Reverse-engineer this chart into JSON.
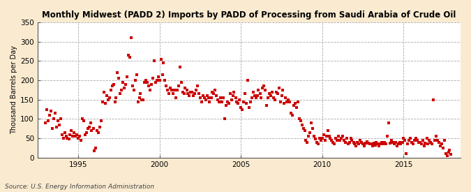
{
  "title": "Monthly Midwest (PADD 2) Imports by PADD of Processing from Saudi Arabia of Crude Oil",
  "ylabel": "Thousand Barrels per Day",
  "source": "Source: U.S. Energy Information Administration",
  "background_color": "#faebd0",
  "plot_bg_color": "#ffffff",
  "marker_color": "#cc0000",
  "marker_size": 7,
  "ylim": [
    0,
    350
  ],
  "yticks": [
    0,
    50,
    100,
    150,
    200,
    250,
    300,
    350
  ],
  "x_start_year": 1992.5,
  "x_end_year": 2018.5,
  "xticks": [
    1995,
    2000,
    2005,
    2010,
    2015
  ],
  "data": [
    [
      1993.0,
      90
    ],
    [
      1993.08,
      125
    ],
    [
      1993.17,
      95
    ],
    [
      1993.25,
      110
    ],
    [
      1993.33,
      120
    ],
    [
      1993.42,
      75
    ],
    [
      1993.5,
      100
    ],
    [
      1993.58,
      115
    ],
    [
      1993.67,
      80
    ],
    [
      1993.75,
      95
    ],
    [
      1993.83,
      85
    ],
    [
      1993.92,
      100
    ],
    [
      1994.0,
      60
    ],
    [
      1994.08,
      50
    ],
    [
      1994.17,
      65
    ],
    [
      1994.25,
      55
    ],
    [
      1994.33,
      50
    ],
    [
      1994.42,
      48
    ],
    [
      1994.5,
      60
    ],
    [
      1994.58,
      70
    ],
    [
      1994.67,
      55
    ],
    [
      1994.75,
      65
    ],
    [
      1994.83,
      55
    ],
    [
      1994.92,
      60
    ],
    [
      1995.0,
      50
    ],
    [
      1995.08,
      55
    ],
    [
      1995.17,
      45
    ],
    [
      1995.25,
      100
    ],
    [
      1995.33,
      95
    ],
    [
      1995.42,
      60
    ],
    [
      1995.5,
      65
    ],
    [
      1995.58,
      75
    ],
    [
      1995.67,
      80
    ],
    [
      1995.75,
      90
    ],
    [
      1995.83,
      70
    ],
    [
      1995.92,
      75
    ],
    [
      1996.0,
      18
    ],
    [
      1996.08,
      25
    ],
    [
      1996.17,
      70
    ],
    [
      1996.25,
      65
    ],
    [
      1996.33,
      80
    ],
    [
      1996.42,
      95
    ],
    [
      1996.5,
      145
    ],
    [
      1996.58,
      170
    ],
    [
      1996.67,
      140
    ],
    [
      1996.75,
      160
    ],
    [
      1996.83,
      150
    ],
    [
      1996.92,
      155
    ],
    [
      1997.0,
      175
    ],
    [
      1997.08,
      185
    ],
    [
      1997.17,
      190
    ],
    [
      1997.25,
      145
    ],
    [
      1997.33,
      155
    ],
    [
      1997.42,
      220
    ],
    [
      1997.5,
      205
    ],
    [
      1997.58,
      165
    ],
    [
      1997.67,
      175
    ],
    [
      1997.75,
      195
    ],
    [
      1997.83,
      180
    ],
    [
      1997.92,
      190
    ],
    [
      1998.0,
      210
    ],
    [
      1998.08,
      265
    ],
    [
      1998.17,
      260
    ],
    [
      1998.25,
      310
    ],
    [
      1998.33,
      185
    ],
    [
      1998.42,
      175
    ],
    [
      1998.5,
      200
    ],
    [
      1998.58,
      215
    ],
    [
      1998.67,
      145
    ],
    [
      1998.75,
      155
    ],
    [
      1998.83,
      165
    ],
    [
      1998.92,
      150
    ],
    [
      1999.0,
      150
    ],
    [
      1999.08,
      195
    ],
    [
      1999.17,
      200
    ],
    [
      1999.25,
      195
    ],
    [
      1999.33,
      185
    ],
    [
      1999.42,
      175
    ],
    [
      1999.5,
      190
    ],
    [
      1999.58,
      205
    ],
    [
      1999.67,
      250
    ],
    [
      1999.75,
      195
    ],
    [
      1999.83,
      200
    ],
    [
      1999.92,
      210
    ],
    [
      2000.0,
      200
    ],
    [
      2000.08,
      255
    ],
    [
      2000.17,
      215
    ],
    [
      2000.25,
      245
    ],
    [
      2000.33,
      200
    ],
    [
      2000.42,
      185
    ],
    [
      2000.5,
      175
    ],
    [
      2000.58,
      165
    ],
    [
      2000.67,
      180
    ],
    [
      2000.75,
      175
    ],
    [
      2000.83,
      165
    ],
    [
      2000.92,
      175
    ],
    [
      2001.0,
      155
    ],
    [
      2001.08,
      175
    ],
    [
      2001.17,
      185
    ],
    [
      2001.25,
      235
    ],
    [
      2001.33,
      195
    ],
    [
      2001.42,
      170
    ],
    [
      2001.5,
      165
    ],
    [
      2001.58,
      180
    ],
    [
      2001.67,
      175
    ],
    [
      2001.75,
      165
    ],
    [
      2001.83,
      160
    ],
    [
      2001.92,
      170
    ],
    [
      2002.0,
      170
    ],
    [
      2002.08,
      160
    ],
    [
      2002.17,
      165
    ],
    [
      2002.25,
      175
    ],
    [
      2002.33,
      185
    ],
    [
      2002.42,
      165
    ],
    [
      2002.5,
      155
    ],
    [
      2002.58,
      145
    ],
    [
      2002.67,
      160
    ],
    [
      2002.75,
      155
    ],
    [
      2002.83,
      150
    ],
    [
      2002.92,
      160
    ],
    [
      2003.0,
      155
    ],
    [
      2003.08,
      145
    ],
    [
      2003.17,
      155
    ],
    [
      2003.25,
      170
    ],
    [
      2003.33,
      165
    ],
    [
      2003.42,
      175
    ],
    [
      2003.5,
      160
    ],
    [
      2003.58,
      150
    ],
    [
      2003.67,
      145
    ],
    [
      2003.75,
      155
    ],
    [
      2003.83,
      145
    ],
    [
      2003.92,
      155
    ],
    [
      2004.0,
      100
    ],
    [
      2004.08,
      135
    ],
    [
      2004.17,
      145
    ],
    [
      2004.25,
      140
    ],
    [
      2004.33,
      165
    ],
    [
      2004.42,
      150
    ],
    [
      2004.5,
      160
    ],
    [
      2004.58,
      170
    ],
    [
      2004.67,
      155
    ],
    [
      2004.75,
      145
    ],
    [
      2004.83,
      140
    ],
    [
      2004.92,
      150
    ],
    [
      2005.0,
      130
    ],
    [
      2005.08,
      125
    ],
    [
      2005.17,
      145
    ],
    [
      2005.25,
      165
    ],
    [
      2005.33,
      140
    ],
    [
      2005.42,
      200
    ],
    [
      2005.5,
      130
    ],
    [
      2005.58,
      145
    ],
    [
      2005.67,
      155
    ],
    [
      2005.75,
      170
    ],
    [
      2005.83,
      160
    ],
    [
      2005.92,
      155
    ],
    [
      2006.0,
      160
    ],
    [
      2006.08,
      175
    ],
    [
      2006.17,
      165
    ],
    [
      2006.25,
      155
    ],
    [
      2006.33,
      180
    ],
    [
      2006.42,
      185
    ],
    [
      2006.5,
      175
    ],
    [
      2006.58,
      135
    ],
    [
      2006.67,
      155
    ],
    [
      2006.75,
      165
    ],
    [
      2006.83,
      160
    ],
    [
      2006.92,
      170
    ],
    [
      2007.0,
      155
    ],
    [
      2007.08,
      150
    ],
    [
      2007.17,
      170
    ],
    [
      2007.25,
      165
    ],
    [
      2007.33,
      180
    ],
    [
      2007.42,
      145
    ],
    [
      2007.5,
      160
    ],
    [
      2007.58,
      175
    ],
    [
      2007.67,
      140
    ],
    [
      2007.75,
      155
    ],
    [
      2007.83,
      145
    ],
    [
      2007.92,
      150
    ],
    [
      2008.0,
      145
    ],
    [
      2008.08,
      115
    ],
    [
      2008.17,
      110
    ],
    [
      2008.25,
      135
    ],
    [
      2008.33,
      140
    ],
    [
      2008.42,
      130
    ],
    [
      2008.5,
      145
    ],
    [
      2008.58,
      100
    ],
    [
      2008.67,
      95
    ],
    [
      2008.75,
      85
    ],
    [
      2008.83,
      75
    ],
    [
      2008.92,
      70
    ],
    [
      2009.0,
      45
    ],
    [
      2009.08,
      40
    ],
    [
      2009.17,
      55
    ],
    [
      2009.25,
      65
    ],
    [
      2009.33,
      90
    ],
    [
      2009.42,
      75
    ],
    [
      2009.5,
      55
    ],
    [
      2009.58,
      48
    ],
    [
      2009.67,
      40
    ],
    [
      2009.75,
      35
    ],
    [
      2009.83,
      50
    ],
    [
      2009.92,
      45
    ],
    [
      2010.0,
      50
    ],
    [
      2010.08,
      60
    ],
    [
      2010.17,
      45
    ],
    [
      2010.25,
      55
    ],
    [
      2010.33,
      70
    ],
    [
      2010.42,
      55
    ],
    [
      2010.5,
      50
    ],
    [
      2010.58,
      45
    ],
    [
      2010.67,
      40
    ],
    [
      2010.75,
      35
    ],
    [
      2010.83,
      50
    ],
    [
      2010.92,
      45
    ],
    [
      2011.0,
      55
    ],
    [
      2011.08,
      45
    ],
    [
      2011.17,
      50
    ],
    [
      2011.25,
      55
    ],
    [
      2011.33,
      45
    ],
    [
      2011.42,
      40
    ],
    [
      2011.5,
      50
    ],
    [
      2011.58,
      35
    ],
    [
      2011.67,
      40
    ],
    [
      2011.75,
      50
    ],
    [
      2011.83,
      45
    ],
    [
      2011.92,
      40
    ],
    [
      2012.0,
      35
    ],
    [
      2012.08,
      30
    ],
    [
      2012.17,
      40
    ],
    [
      2012.25,
      35
    ],
    [
      2012.33,
      45
    ],
    [
      2012.42,
      40
    ],
    [
      2012.5,
      35
    ],
    [
      2012.58,
      30
    ],
    [
      2012.67,
      38
    ],
    [
      2012.75,
      42
    ],
    [
      2012.83,
      38
    ],
    [
      2012.92,
      35
    ],
    [
      2013.0,
      35
    ],
    [
      2013.08,
      30
    ],
    [
      2013.17,
      38
    ],
    [
      2013.25,
      32
    ],
    [
      2013.33,
      40
    ],
    [
      2013.42,
      35
    ],
    [
      2013.5,
      30
    ],
    [
      2013.58,
      35
    ],
    [
      2013.67,
      40
    ],
    [
      2013.75,
      35
    ],
    [
      2013.83,
      40
    ],
    [
      2013.92,
      35
    ],
    [
      2014.0,
      55
    ],
    [
      2014.08,
      90
    ],
    [
      2014.17,
      38
    ],
    [
      2014.25,
      45
    ],
    [
      2014.33,
      40
    ],
    [
      2014.42,
      35
    ],
    [
      2014.5,
      40
    ],
    [
      2014.58,
      30
    ],
    [
      2014.67,
      35
    ],
    [
      2014.75,
      40
    ],
    [
      2014.83,
      35
    ],
    [
      2014.92,
      40
    ],
    [
      2015.0,
      50
    ],
    [
      2015.08,
      45
    ],
    [
      2015.17,
      10
    ],
    [
      2015.25,
      35
    ],
    [
      2015.33,
      45
    ],
    [
      2015.42,
      50
    ],
    [
      2015.5,
      40
    ],
    [
      2015.58,
      35
    ],
    [
      2015.67,
      45
    ],
    [
      2015.75,
      50
    ],
    [
      2015.83,
      45
    ],
    [
      2015.92,
      40
    ],
    [
      2016.0,
      40
    ],
    [
      2016.08,
      35
    ],
    [
      2016.17,
      45
    ],
    [
      2016.25,
      30
    ],
    [
      2016.33,
      38
    ],
    [
      2016.42,
      50
    ],
    [
      2016.5,
      35
    ],
    [
      2016.58,
      45
    ],
    [
      2016.67,
      40
    ],
    [
      2016.75,
      35
    ],
    [
      2016.83,
      150
    ],
    [
      2016.92,
      45
    ],
    [
      2017.0,
      55
    ],
    [
      2017.08,
      45
    ],
    [
      2017.17,
      40
    ],
    [
      2017.25,
      30
    ],
    [
      2017.33,
      35
    ],
    [
      2017.42,
      25
    ],
    [
      2017.5,
      45
    ],
    [
      2017.58,
      10
    ],
    [
      2017.67,
      5
    ],
    [
      2017.75,
      15
    ],
    [
      2017.83,
      20
    ],
    [
      2017.92,
      8
    ]
  ]
}
